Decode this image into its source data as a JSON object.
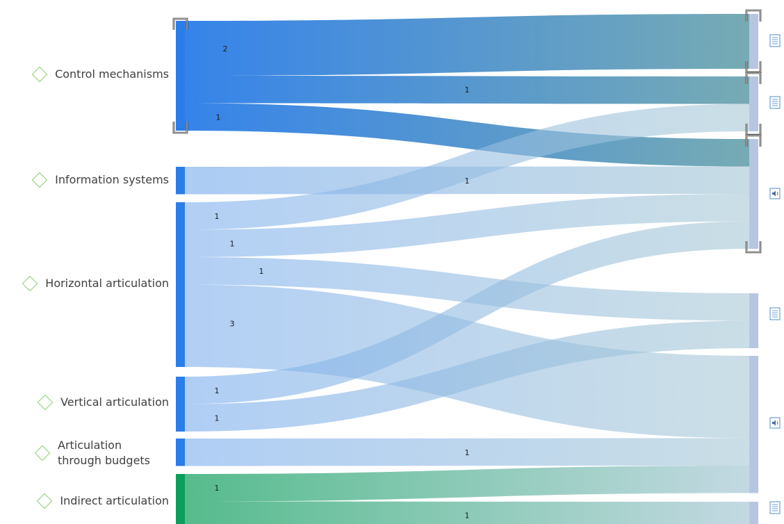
{
  "nodes": [
    {
      "id": "control",
      "label": "Control mechanisms"
    },
    {
      "id": "info",
      "label": "Information systems"
    },
    {
      "id": "horizontal",
      "label": "Horizontal articulation"
    },
    {
      "id": "vertical",
      "label": "Vertical articulation"
    },
    {
      "id": "budgets",
      "label": "Articulation through budgets"
    },
    {
      "id": "indirect",
      "label": "Indirect articulation"
    }
  ],
  "targets": [
    {
      "id": "t1",
      "icon": "document-icon"
    },
    {
      "id": "t2",
      "icon": "document-icon"
    },
    {
      "id": "t3",
      "icon": "audio-icon"
    },
    {
      "id": "t4",
      "icon": "document-icon"
    },
    {
      "id": "t5",
      "icon": "audio-icon"
    },
    {
      "id": "t6",
      "icon": "document-icon"
    }
  ],
  "links": [
    {
      "source": "control",
      "target": "t1",
      "value": 2,
      "label": "2"
    },
    {
      "source": "control",
      "target": "t2",
      "value": 1,
      "label": "1"
    },
    {
      "source": "control",
      "target": "t3",
      "value": 1,
      "label": "1"
    },
    {
      "source": "info",
      "target": "t3",
      "value": 1,
      "label": "1"
    },
    {
      "source": "horizontal",
      "target": "t2",
      "value": 1,
      "label": "1"
    },
    {
      "source": "horizontal",
      "target": "t3",
      "value": 1,
      "label": "1"
    },
    {
      "source": "horizontal",
      "target": "t4",
      "value": 1,
      "label": "1"
    },
    {
      "source": "horizontal",
      "target": "t5",
      "value": 3,
      "label": "3"
    },
    {
      "source": "vertical",
      "target": "t3",
      "value": 1,
      "label": "1"
    },
    {
      "source": "vertical",
      "target": "t4",
      "value": 1,
      "label": "1"
    },
    {
      "source": "budgets",
      "target": "t5",
      "value": 1,
      "label": "1"
    },
    {
      "source": "indirect",
      "target": "t5",
      "value": 1,
      "label": "1"
    },
    {
      "source": "indirect",
      "target": "t6",
      "value": 1,
      "label": "1"
    }
  ],
  "colors": {
    "source_blue": "#2b7de9",
    "source_blue_light": "#7fb0ee",
    "source_green": "#0e9e5c",
    "target_gray_blue": "#b7c6e0",
    "link_end_teal": "#6fa6b0",
    "link_end_light": "#a9c9d6",
    "label_text": "#404040",
    "diamond": "#8fcf72",
    "icon_blue": "#6f9fd6"
  },
  "selected_nodes": [
    "control",
    "t1",
    "t2",
    "t3"
  ]
}
